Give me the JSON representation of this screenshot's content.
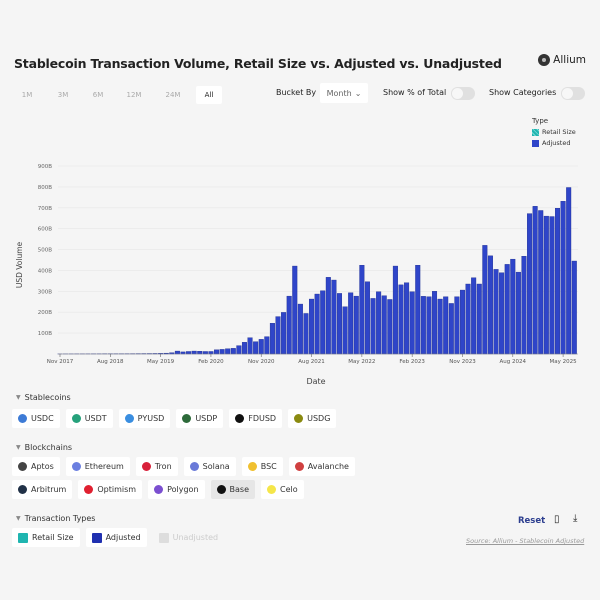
{
  "title": "Stablecoin Transaction Volume, Retail Size vs. Adjusted vs. Unadjusted",
  "logo": "Allium",
  "ranges": [
    "1M",
    "3M",
    "6M",
    "12M",
    "24M",
    "All"
  ],
  "active_range": "All",
  "bucket_label": "Bucket By",
  "bucket_value": "Month",
  "show_pct_label": "Show % of Total",
  "show_pct_on": false,
  "show_categories_label": "Show Categories",
  "show_categories_on": false,
  "legend": {
    "title": "Type",
    "items": [
      {
        "label": "Retail Size",
        "color": "#1fb5b0"
      },
      {
        "label": "Adjusted",
        "color": "#2f45c9"
      }
    ]
  },
  "chart_data": {
    "type": "bar",
    "title": "Stablecoin Transaction Volume, Retail Size vs. Adjusted vs. Unadjusted",
    "xlabel": "Date",
    "ylabel": "USD Volume",
    "x_start": "Nov 2017",
    "x_end": "Jul 2025",
    "interval": "month",
    "x_ticks": [
      "Nov 2017",
      "Aug 2018",
      "May 2019",
      "Feb 2020",
      "Nov 2020",
      "Aug 2021",
      "May 2022",
      "Feb 2023",
      "Nov 2023",
      "Aug 2024",
      "May 2025"
    ],
    "y_ticks": [
      "100B",
      "200B",
      "300B",
      "400B",
      "500B",
      "600B",
      "700B",
      "800B",
      "900B"
    ],
    "ylim": [
      0,
      900
    ],
    "unit": "B USD",
    "grid": true,
    "legend_position": "top-right",
    "series": [
      {
        "name": "Adjusted",
        "color": "#2f45c9",
        "values": [
          0.3,
          0.4,
          0.5,
          0.6,
          0.6,
          0.7,
          0.8,
          0.9,
          1,
          1,
          1.2,
          1.3,
          1.5,
          1.6,
          1.8,
          2,
          2.2,
          2.5,
          3,
          4,
          6,
          14,
          10,
          12,
          14,
          13,
          12,
          12,
          20,
          22,
          25,
          27,
          40,
          56,
          78,
          59,
          70,
          83,
          147,
          179,
          199,
          277,
          421,
          239,
          194,
          263,
          287,
          303,
          367,
          354,
          290,
          226,
          293,
          277,
          425,
          346,
          266,
          298,
          279,
          261,
          421,
          331,
          341,
          298,
          425,
          276,
          274,
          300,
          263,
          274,
          242,
          274,
          306,
          335,
          365,
          335,
          520,
          470,
          405,
          389,
          429,
          454,
          392,
          468,
          672,
          707,
          687,
          660,
          658,
          698,
          731,
          797,
          445
        ]
      }
    ]
  },
  "stablecoins": {
    "label": "Stablecoins",
    "items": [
      {
        "label": "USDC",
        "color": "#3d7bd6"
      },
      {
        "label": "USDT",
        "color": "#26a17b"
      },
      {
        "label": "PYUSD",
        "color": "#3a8ee0"
      },
      {
        "label": "USDP",
        "color": "#2d6a3a"
      },
      {
        "label": "FDUSD",
        "color": "#111111"
      },
      {
        "label": "USDG",
        "color": "#8a8a10"
      }
    ]
  },
  "blockchains": {
    "label": "Blockchains",
    "rows": [
      [
        {
          "label": "Aptos",
          "color": "#444444"
        },
        {
          "label": "Ethereum",
          "color": "#6b7fe0"
        },
        {
          "label": "Tron",
          "color": "#d8203a"
        },
        {
          "label": "Solana",
          "color": "#6a7ad8"
        },
        {
          "label": "BSC",
          "color": "#f0c030"
        },
        {
          "label": "Avalanche",
          "color": "#d04040"
        }
      ],
      [
        {
          "label": "Arbitrum",
          "color": "#213147"
        },
        {
          "label": "Optimism",
          "color": "#e02030"
        },
        {
          "label": "Polygon",
          "color": "#7b4fd0"
        },
        {
          "label": "Base",
          "color": "#111111",
          "selected": true
        },
        {
          "label": "Celo",
          "color": "#f5e64a"
        }
      ]
    ]
  },
  "transaction_types": {
    "label": "Transaction Types",
    "items": [
      {
        "label": "Retail Size",
        "color": "#1fb5b0",
        "on": true
      },
      {
        "label": "Adjusted",
        "color": "#2030b0",
        "on": true
      },
      {
        "label": "Unadjusted",
        "color": "#dddddd",
        "on": false
      }
    ]
  },
  "reset_label": "Reset",
  "source": "Source: Allium - Stablecoin Adjusted"
}
